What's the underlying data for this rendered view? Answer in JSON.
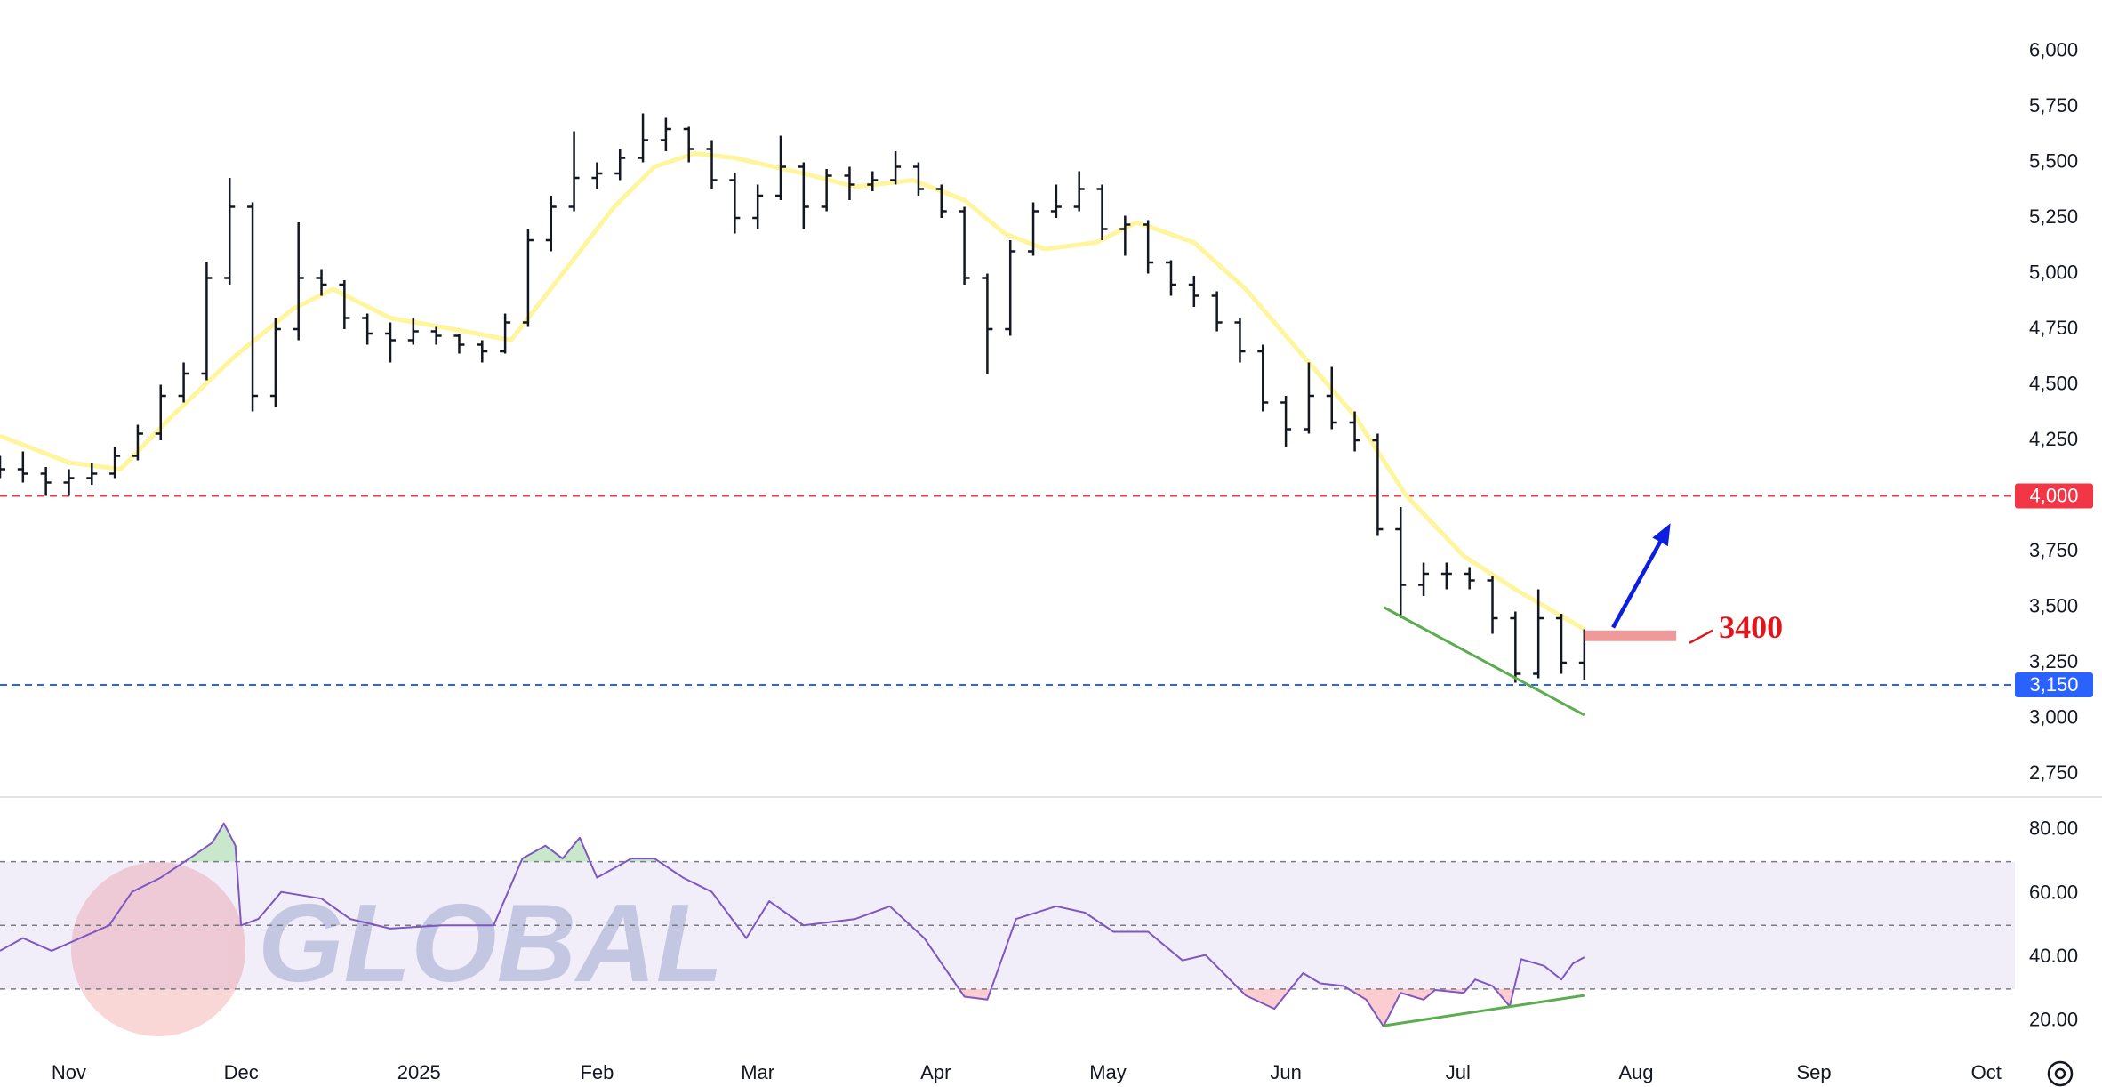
{
  "chart_data": [
    {
      "type": "ohlc",
      "x": [
        -12,
        -8,
        -4,
        0,
        4,
        8,
        12,
        16,
        20,
        24,
        28,
        32,
        36,
        40,
        44,
        48,
        52,
        56,
        60,
        64,
        68,
        72,
        76,
        80,
        84,
        88,
        92,
        96,
        100,
        104,
        108,
        112,
        116,
        120,
        124,
        128,
        132,
        136,
        140,
        144,
        148,
        152,
        156,
        160,
        164,
        168,
        172,
        176,
        180,
        184,
        188,
        192,
        196,
        200,
        204,
        208,
        212,
        216,
        220,
        224,
        228,
        232,
        236,
        240,
        244,
        248,
        252,
        256,
        260,
        264
      ],
      "open": [
        4150,
        4120,
        4100,
        4060,
        4080,
        4100,
        4180,
        4280,
        4450,
        4550,
        4980,
        5300,
        4450,
        4750,
        4980,
        4950,
        4800,
        4730,
        4700,
        4740,
        4720,
        4680,
        4650,
        4780,
        5150,
        5300,
        5430,
        5450,
        5520,
        5600,
        5650,
        5560,
        5420,
        5250,
        5350,
        5480,
        5300,
        5440,
        5400,
        5420,
        5480,
        5380,
        5280,
        4980,
        4750,
        5100,
        5280,
        5300,
        5380,
        5200,
        5220,
        5050,
        4950,
        4900,
        4780,
        4650,
        4420,
        4300,
        4450,
        4330,
        4250,
        3850,
        3600,
        3650,
        3650,
        3620,
        3450,
        3200,
        3450,
        3250
      ],
      "high": [
        4180,
        4200,
        4130,
        4120,
        4150,
        4220,
        4320,
        4500,
        4600,
        5050,
        5430,
        5320,
        4800,
        5230,
        5020,
        4970,
        4820,
        4780,
        4800,
        4760,
        4730,
        4700,
        4820,
        5200,
        5350,
        5640,
        5500,
        5560,
        5720,
        5700,
        5660,
        5600,
        5450,
        5400,
        5620,
        5500,
        5470,
        5480,
        5460,
        5550,
        5500,
        5400,
        5300,
        5000,
        5150,
        5320,
        5400,
        5460,
        5400,
        5260,
        5240,
        5060,
        4990,
        4920,
        4800,
        4680,
        4450,
        4600,
        4580,
        4380,
        4280,
        3950,
        3700,
        3700,
        3680,
        3640,
        3480,
        3580,
        3470,
        3400
      ],
      "low": [
        4080,
        4060,
        4000,
        4000,
        4050,
        4080,
        4160,
        4250,
        4420,
        4520,
        4950,
        4380,
        4400,
        4700,
        4900,
        4750,
        4680,
        4600,
        4680,
        4680,
        4640,
        4600,
        4640,
        4760,
        5100,
        5280,
        5380,
        5420,
        5500,
        5550,
        5500,
        5380,
        5180,
        5200,
        5330,
        5200,
        5280,
        5330,
        5370,
        5400,
        5350,
        5250,
        4950,
        4550,
        4720,
        5080,
        5250,
        5280,
        5150,
        5080,
        5000,
        4900,
        4850,
        4740,
        4600,
        4380,
        4220,
        4280,
        4300,
        4200,
        3820,
        3450,
        3550,
        3580,
        3580,
        3380,
        3160,
        3180,
        3200,
        3170
      ],
      "close": [
        4120,
        4100,
        4060,
        4080,
        4100,
        4180,
        4280,
        4450,
        4550,
        4980,
        5300,
        4450,
        4750,
        4980,
        4950,
        4800,
        4730,
        4700,
        4740,
        4720,
        4680,
        4650,
        4780,
        5150,
        5300,
        5430,
        5450,
        5520,
        5600,
        5650,
        5560,
        5420,
        5250,
        5350,
        5480,
        5300,
        5440,
        5400,
        5420,
        5480,
        5380,
        5280,
        4980,
        4750,
        5100,
        5280,
        5300,
        5380,
        5200,
        5220,
        5050,
        4950,
        4900,
        4780,
        4650,
        4420,
        4300,
        4450,
        4330,
        4250,
        3850,
        3600,
        3650,
        3650,
        3620,
        3450,
        3200,
        3450,
        3250,
        3380
      ],
      "color": "#131722",
      "lines": [
        {
          "x": [
            -12,
            0,
            9,
            18,
            29,
            39,
            46,
            56,
            67,
            77,
            86,
            95,
            102,
            109,
            116,
            128,
            137,
            147,
            156,
            163,
            170,
            179,
            186,
            196,
            205,
            214,
            224,
            233,
            243,
            252,
            264
          ],
          "values": [
            4270,
            4150,
            4120,
            4360,
            4630,
            4840,
            4930,
            4800,
            4750,
            4700,
            5000,
            5300,
            5480,
            5540,
            5520,
            5450,
            5390,
            5420,
            5330,
            5180,
            5110,
            5140,
            5230,
            5140,
            4930,
            4660,
            4360,
            4000,
            3730,
            3580,
            3400
          ],
          "color": "#fff59d"
        }
      ],
      "levels": [
        {
          "value": 4000,
          "label": "4,000",
          "color": "#f23645"
        },
        {
          "value": 3150,
          "label": "3,150",
          "color": "#2962ff"
        }
      ],
      "trendline": {
        "x": [
          229,
          264
        ],
        "values": [
          3500,
          3015
        ],
        "color": "#5cad4f"
      },
      "zone": {
        "x": [
          264,
          280
        ],
        "values": [
          3347,
          3395
        ],
        "color": "#ef9a9a"
      },
      "arrow": {
        "x": [
          269,
          279
        ],
        "values": [
          3408,
          3877
        ],
        "color": "#0d1ee0"
      },
      "annotation": "3400",
      "xlim": [
        -12,
        339
      ],
      "ylim": [
        2650,
        6230
      ],
      "yticks": [
        {
          "value": 2750,
          "label": "2,750"
        },
        {
          "value": 3000,
          "label": "3,000"
        },
        {
          "value": 3250,
          "label": "3,250"
        },
        {
          "value": 3500,
          "label": "3,500"
        },
        {
          "value": 3750,
          "label": "3,750"
        },
        {
          "value": 4000,
          "label": "4,000"
        },
        {
          "value": 4250,
          "label": "4,250"
        },
        {
          "value": 4500,
          "label": "4,500"
        },
        {
          "value": 4750,
          "label": "4,750"
        },
        {
          "value": 5000,
          "label": "5,000"
        },
        {
          "value": 5250,
          "label": "5,250"
        },
        {
          "value": 5500,
          "label": "5,500"
        },
        {
          "value": 5750,
          "label": "5,750"
        },
        {
          "value": 6000,
          "label": "6,000"
        }
      ]
    },
    {
      "type": "line",
      "x": [
        -12,
        -8,
        -3,
        2,
        7,
        11,
        16,
        21,
        25,
        27,
        29,
        30,
        33,
        37,
        44,
        49,
        56,
        65,
        74,
        79,
        83,
        86,
        89,
        92,
        98,
        102,
        107,
        112,
        118,
        122,
        128,
        137,
        143,
        149,
        156,
        160,
        165,
        172,
        177,
        182,
        188,
        194,
        198,
        205,
        210,
        215,
        218,
        222,
        226,
        229,
        232,
        236,
        238,
        243,
        245,
        248,
        251,
        253,
        257,
        260,
        262,
        264
      ],
      "values": [
        42,
        46,
        42,
        46,
        50,
        60.5,
        65,
        71,
        76,
        82,
        75,
        50,
        52,
        60.5,
        58.4,
        52,
        49,
        50,
        50,
        71,
        75,
        71,
        77.5,
        65,
        71,
        71,
        65,
        60.5,
        46,
        57.6,
        50,
        52,
        56,
        46,
        27.6,
        26.7,
        52,
        56,
        54,
        48,
        48,
        39,
        40.7,
        28,
        23.8,
        35,
        31.8,
        31,
        26.7,
        18.3,
        28.8,
        26.7,
        29.7,
        28.8,
        33,
        31,
        24.6,
        39.4,
        37.3,
        33,
        38,
        40
      ],
      "color": "#7e57c2",
      "band": [
        30,
        70
      ],
      "midline": 50,
      "trendline": {
        "x": [
          229,
          264
        ],
        "values": [
          18.5,
          28
        ],
        "color": "#5cad4f"
      },
      "xlim": [
        -12,
        339
      ],
      "ylim": [
        11,
        90
      ],
      "yticks": [
        {
          "value": 20,
          "label": "20.00"
        },
        {
          "value": 40,
          "label": "40.00"
        },
        {
          "value": 60,
          "label": "60.00"
        },
        {
          "value": 80,
          "label": "80.00"
        }
      ],
      "xticks": [
        {
          "value": 0,
          "label": "Nov"
        },
        {
          "value": 30,
          "label": "Dec"
        },
        {
          "value": 61,
          "label": "2025"
        },
        {
          "value": 92,
          "label": "Feb"
        },
        {
          "value": 120,
          "label": "Mar"
        },
        {
          "value": 151,
          "label": "Apr"
        },
        {
          "value": 181,
          "label": "May"
        },
        {
          "value": 212,
          "label": "Jun"
        },
        {
          "value": 242,
          "label": "Jul"
        },
        {
          "value": 273,
          "label": "Aug"
        },
        {
          "value": 304,
          "label": "Sep"
        },
        {
          "value": 334,
          "label": "Oct"
        }
      ]
    }
  ],
  "watermark": "GLOBAL"
}
